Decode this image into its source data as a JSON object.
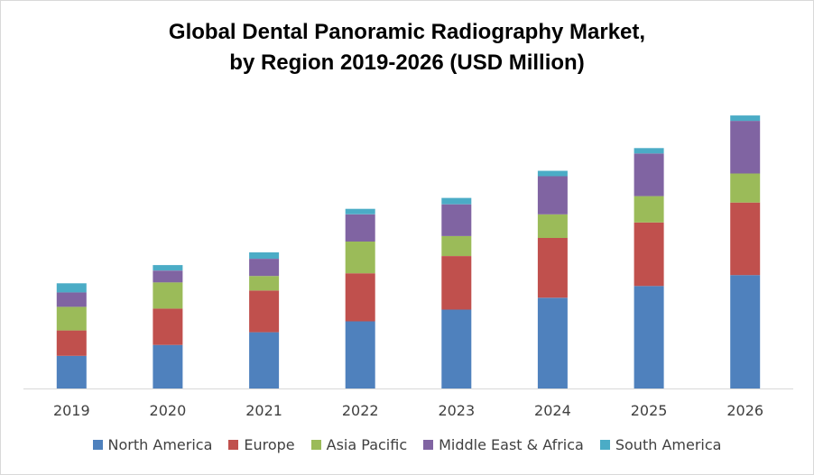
{
  "chart_data": {
    "type": "bar",
    "stacked": true,
    "title": [
      "Global Dental Panoramic Radiography Market,",
      "by Region 2019-2026 (USD Million)"
    ],
    "xlabel": "",
    "ylabel": "",
    "categories": [
      "2019",
      "2020",
      "2021",
      "2022",
      "2023",
      "2024",
      "2025",
      "2026"
    ],
    "ylim": [
      0,
      310
    ],
    "grid": false,
    "legend_position": "bottom",
    "series": [
      {
        "name": "North America",
        "color": "#4f81bd",
        "values": [
          36,
          48,
          62,
          74,
          87,
          100,
          113,
          125
        ]
      },
      {
        "name": "Europe",
        "color": "#c0504d",
        "values": [
          28,
          40,
          46,
          53,
          59,
          66,
          70,
          80
        ]
      },
      {
        "name": "Asia Pacific",
        "color": "#9bbb59",
        "values": [
          26,
          29,
          16,
          35,
          22,
          26,
          29,
          32
        ]
      },
      {
        "name": "Middle East & Africa",
        "color": "#8064a2",
        "values": [
          16,
          13,
          19,
          30,
          35,
          42,
          47,
          58
        ]
      },
      {
        "name": "South America",
        "color": "#4bacc6",
        "values": [
          10,
          6,
          7,
          6,
          7,
          6,
          6,
          6
        ]
      }
    ]
  }
}
